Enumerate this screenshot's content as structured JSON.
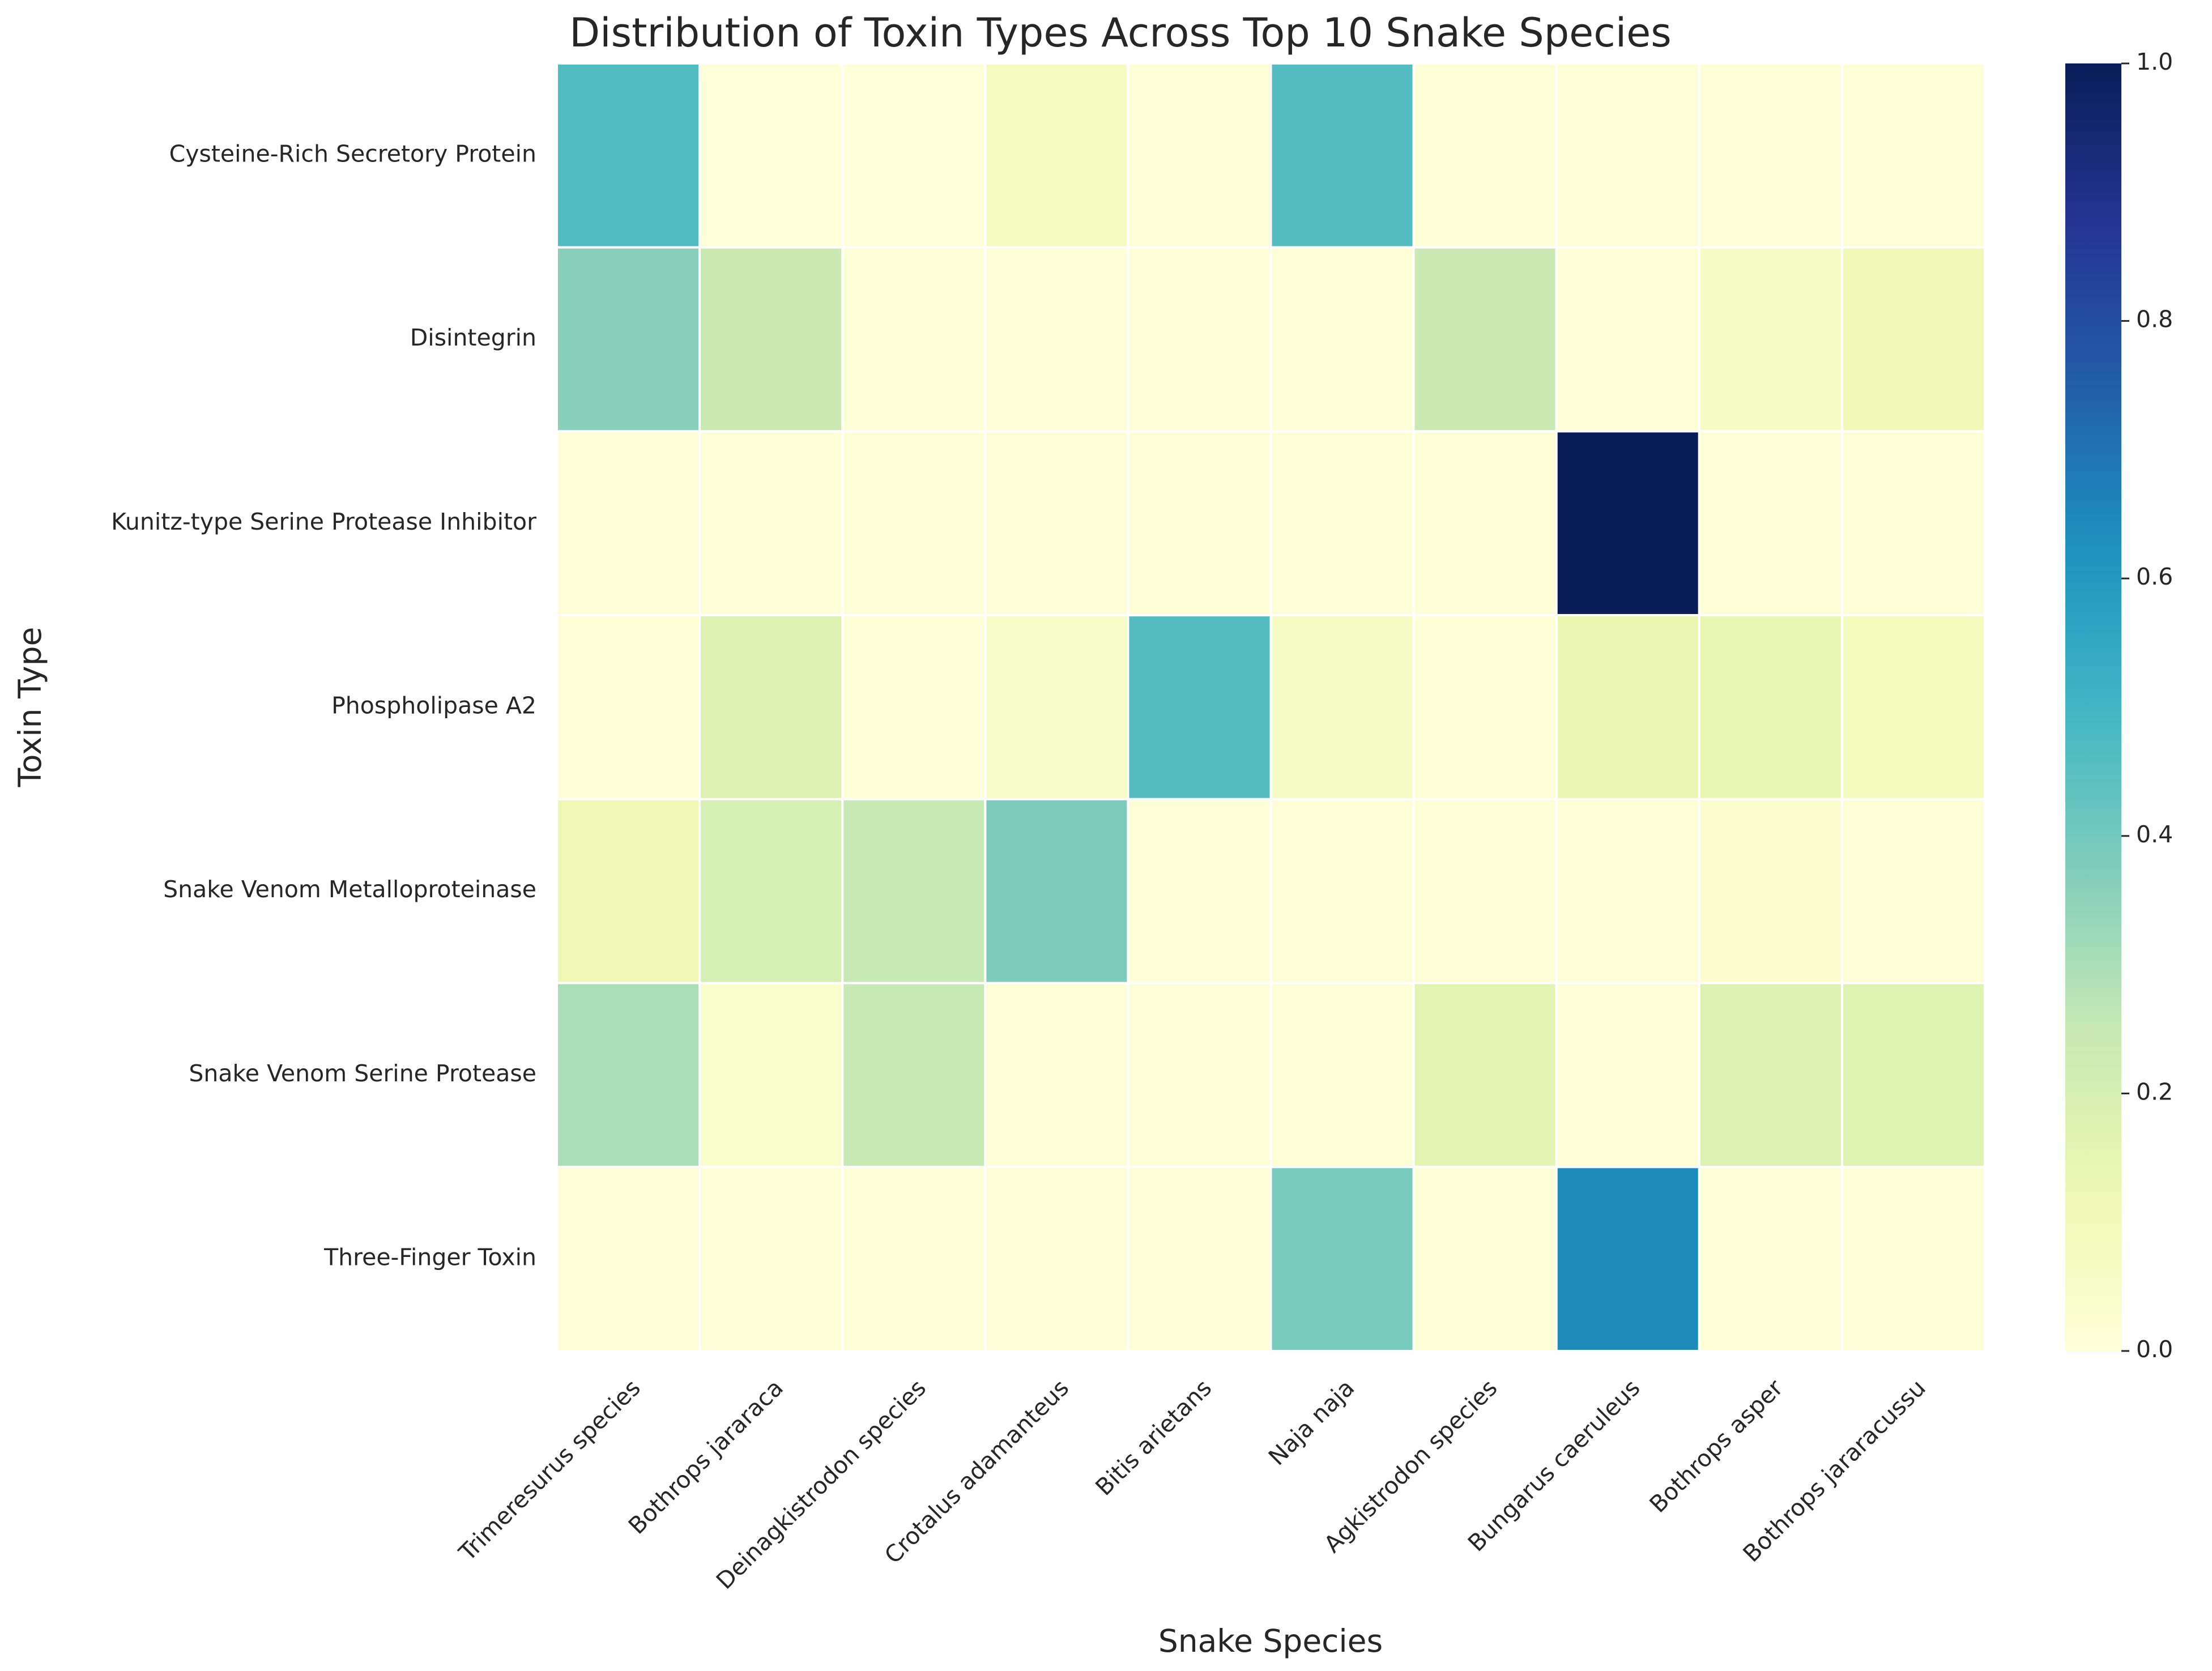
{
  "chart_data": {
    "type": "heatmap",
    "title": "Distribution of Toxin Types Across Top 10 Snake Species",
    "xlabel": "Snake Species",
    "ylabel": "Toxin Type",
    "x_categories": [
      "Trimeresurus species",
      "Bothrops jararaca",
      "Deinagkistrodon species",
      "Crotalus adamanteus",
      "Bitis arietans",
      "Naja naja",
      "Agkistrodon species",
      "Bungarus caeruleus",
      "Bothrops asper",
      "Bothrops jararacussu"
    ],
    "y_categories": [
      "Cysteine-Rich Secretory Protein",
      "Disintegrin",
      "Kunitz-type Serine Protease Inhibitor",
      "Phospholipase A2",
      "Snake Venom Metalloproteinase",
      "Snake Venom Serine Protease",
      "Three-Finger Toxin"
    ],
    "values": [
      [
        0.47,
        0.0,
        0.0,
        0.07,
        0.01,
        0.46,
        0.01,
        0.01,
        0.01,
        0.01
      ],
      [
        0.36,
        0.24,
        0.01,
        0.01,
        0.01,
        0.01,
        0.24,
        0.01,
        0.06,
        0.1
      ],
      [
        0.01,
        0.01,
        0.01,
        0.01,
        0.01,
        0.01,
        0.01,
        1.0,
        0.01,
        0.01
      ],
      [
        0.01,
        0.18,
        0.01,
        0.05,
        0.46,
        0.06,
        0.01,
        0.13,
        0.14,
        0.08
      ],
      [
        0.12,
        0.2,
        0.25,
        0.38,
        0.01,
        0.01,
        0.01,
        0.01,
        0.03,
        0.01
      ],
      [
        0.3,
        0.04,
        0.25,
        0.01,
        0.01,
        0.01,
        0.16,
        0.01,
        0.18,
        0.17
      ],
      [
        0.01,
        0.01,
        0.01,
        0.01,
        0.01,
        0.39,
        0.01,
        0.64,
        0.01,
        0.01
      ]
    ],
    "colorbar": {
      "colormap": "YlGnBu",
      "range": [
        0.0,
        1.0
      ],
      "ticks": [
        "0.0",
        "0.2",
        "0.4",
        "0.6",
        "0.8",
        "1.0"
      ]
    },
    "grid": false
  }
}
